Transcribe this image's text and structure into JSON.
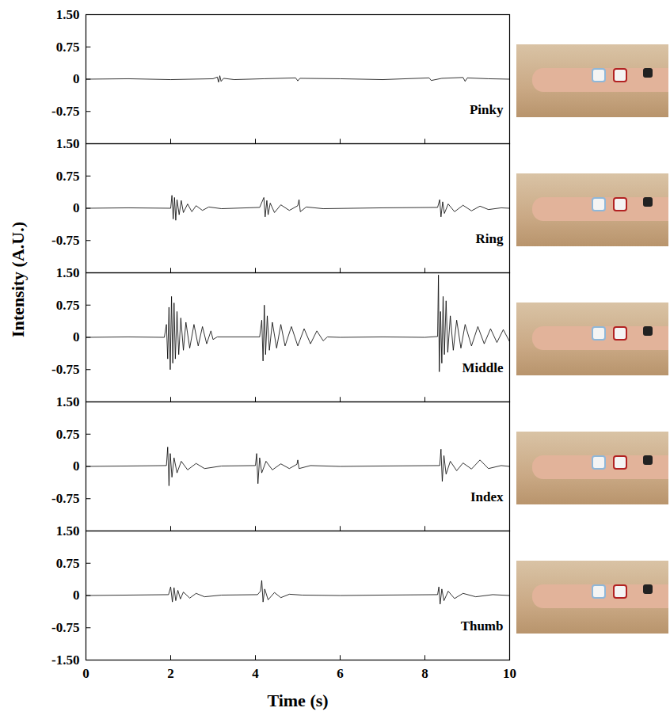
{
  "chart_data": [
    {
      "type": "line",
      "annotation": "Pinky",
      "color": "#000000",
      "tick_labels": "y",
      "xlim": [
        0,
        10
      ],
      "xticks": [
        0,
        2,
        4,
        6,
        8,
        10
      ],
      "ylim": [
        -1.5,
        1.5
      ],
      "yticks": [
        {
          "value": 1.5,
          "label": "1.50"
        },
        0.75,
        0,
        -0.75
      ],
      "x": [
        0,
        1,
        2,
        3.0,
        3.1,
        3.13,
        3.16,
        3.19,
        3.25,
        3.5,
        4.2,
        4.95,
        5.0,
        5.05,
        6,
        7,
        8.1,
        8.15,
        8.4,
        8.9,
        8.95,
        9.0,
        9.5,
        10
      ],
      "values": [
        0,
        0.01,
        -0.01,
        0.01,
        0.05,
        -0.07,
        0.08,
        -0.05,
        0.02,
        -0.01,
        0.01,
        0.03,
        -0.04,
        0.02,
        0.01,
        -0.01,
        0.03,
        -0.03,
        0.02,
        0.04,
        -0.05,
        0.03,
        0.01,
        0
      ]
    },
    {
      "type": "line",
      "annotation": "Ring",
      "color": "#000000",
      "tick_labels": "y",
      "xlim": [
        0,
        10
      ],
      "xticks": [
        0,
        2,
        4,
        6,
        8,
        10
      ],
      "ylim": [
        -1.5,
        1.5
      ],
      "yticks": [
        {
          "value": 1.5,
          "label": "1.50"
        },
        0.75,
        0,
        -0.75
      ],
      "x": [
        0,
        1,
        2.0,
        2.03,
        2.06,
        2.09,
        2.12,
        2.15,
        2.2,
        2.25,
        2.3,
        2.4,
        2.5,
        2.6,
        2.75,
        2.9,
        3.2,
        4.1,
        4.2,
        4.23,
        4.27,
        4.3,
        4.35,
        4.45,
        4.6,
        4.8,
        5.0,
        5.03,
        5.06,
        5.2,
        5.6,
        7,
        8.3,
        8.35,
        8.38,
        8.42,
        8.46,
        8.55,
        8.7,
        8.9,
        9.1,
        9.3,
        9.5,
        9.8,
        10
      ],
      "values": [
        0,
        0.01,
        0,
        0.3,
        -0.25,
        0.25,
        -0.28,
        0.2,
        -0.15,
        0.18,
        -0.1,
        0.1,
        -0.08,
        0.06,
        -0.05,
        0.03,
        -0.01,
        0.02,
        0.25,
        -0.2,
        0.18,
        -0.15,
        0.12,
        -0.1,
        0.08,
        -0.05,
        0.06,
        0.2,
        -0.08,
        0.03,
        -0.01,
        0.01,
        0.02,
        0.2,
        -0.2,
        0.15,
        -0.12,
        0.1,
        -0.08,
        0.07,
        -0.06,
        0.05,
        -0.03,
        0.01,
        0
      ]
    },
    {
      "type": "line",
      "annotation": "Middle",
      "ylabel": "Intensity (A.U.)",
      "color": "#000000",
      "tick_labels": "y",
      "xlim": [
        0,
        10
      ],
      "xticks": [
        0,
        2,
        4,
        6,
        8,
        10
      ],
      "ylim": [
        -1.5,
        1.5
      ],
      "yticks": [
        {
          "value": 1.5,
          "label": "1.50"
        },
        0.75,
        0,
        -0.75
      ],
      "x": [
        0,
        1,
        1.85,
        1.9,
        1.93,
        1.96,
        1.99,
        2.02,
        2.05,
        2.08,
        2.11,
        2.15,
        2.19,
        2.24,
        2.3,
        2.36,
        2.45,
        2.55,
        2.65,
        2.75,
        2.85,
        2.95,
        3.0,
        3.1,
        4.1,
        4.15,
        4.18,
        4.21,
        4.24,
        4.28,
        4.33,
        4.4,
        4.5,
        4.6,
        4.7,
        4.85,
        5.0,
        5.15,
        5.3,
        5.45,
        5.6,
        5.7,
        6,
        7,
        8,
        8.3,
        8.32,
        8.34,
        8.37,
        8.4,
        8.43,
        8.46,
        8.5,
        8.54,
        8.6,
        8.67,
        8.75,
        8.85,
        8.95,
        9.1,
        9.25,
        9.4,
        9.55,
        9.7,
        9.85,
        10
      ],
      "values": [
        0,
        0.01,
        0,
        0.3,
        -0.5,
        0.7,
        -0.75,
        0.95,
        -0.6,
        0.8,
        -0.5,
        0.6,
        -0.4,
        0.45,
        -0.3,
        0.35,
        -0.25,
        0.3,
        -0.2,
        0.25,
        -0.15,
        0.15,
        -0.05,
        0.01,
        0.01,
        0.4,
        -0.55,
        0.75,
        -0.4,
        0.5,
        -0.3,
        0.35,
        -0.25,
        0.3,
        -0.2,
        0.25,
        -0.2,
        0.2,
        -0.15,
        0.15,
        -0.08,
        0.01,
        0,
        0.01,
        0,
        0.02,
        1.45,
        -0.8,
        0.6,
        -0.6,
        0.95,
        -0.4,
        0.85,
        -0.35,
        0.5,
        -0.3,
        0.4,
        -0.25,
        0.3,
        -0.2,
        0.25,
        -0.15,
        0.2,
        -0.12,
        0.18,
        -0.1
      ]
    },
    {
      "type": "line",
      "annotation": "Index",
      "color": "#000000",
      "tick_labels": "y",
      "xlim": [
        0,
        10
      ],
      "xticks": [
        0,
        2,
        4,
        6,
        8,
        10
      ],
      "ylim": [
        -1.5,
        1.5
      ],
      "yticks": [
        {
          "value": 1.5,
          "label": "1.50"
        },
        0.75,
        0,
        -0.75
      ],
      "x": [
        0,
        1,
        1.9,
        1.93,
        1.96,
        1.99,
        2.03,
        2.08,
        2.15,
        2.25,
        2.4,
        2.6,
        2.8,
        3.2,
        4.0,
        4.03,
        4.06,
        4.1,
        4.15,
        4.25,
        4.4,
        4.6,
        4.8,
        4.98,
        5.0,
        5.03,
        5.3,
        6,
        7,
        8.35,
        8.38,
        8.41,
        8.45,
        8.5,
        8.6,
        8.75,
        8.9,
        9.1,
        9.3,
        9.5,
        9.8,
        10
      ],
      "values": [
        0,
        0.01,
        0.02,
        0.45,
        -0.45,
        0.3,
        -0.25,
        0.2,
        -0.15,
        0.12,
        -0.08,
        0.07,
        -0.05,
        0.01,
        0.02,
        0.3,
        -0.4,
        0.2,
        -0.15,
        0.12,
        -0.08,
        0.06,
        -0.05,
        0.05,
        0.15,
        -0.05,
        0.02,
        0,
        0.01,
        0.02,
        0.4,
        -0.35,
        0.25,
        -0.18,
        0.12,
        -0.1,
        0.08,
        -0.06,
        0.15,
        -0.05,
        0.02,
        0
      ]
    },
    {
      "type": "line",
      "annotation": "Thumb",
      "xlabel": "Time (s)",
      "color": "#000000",
      "xlim": [
        0,
        10
      ],
      "xticks": [
        0,
        2,
        4,
        6,
        8,
        10
      ],
      "ylim": [
        -1.5,
        1.5
      ],
      "yticks": [
        {
          "value": 1.5,
          "label": "1.50"
        },
        0.75,
        0,
        -0.75,
        {
          "value": -1.5,
          "label": "-1.50"
        }
      ],
      "x": [
        0,
        1,
        1.95,
        2.0,
        2.04,
        2.08,
        2.12,
        2.17,
        2.23,
        2.3,
        2.45,
        2.6,
        2.8,
        3.2,
        4.05,
        4.12,
        4.15,
        4.18,
        4.22,
        4.3,
        4.45,
        4.6,
        4.8,
        5.1,
        6,
        7,
        8.3,
        8.33,
        8.36,
        8.4,
        8.45,
        8.55,
        8.7,
        8.9,
        9.2,
        9.6,
        10
      ],
      "values": [
        0,
        0.01,
        0.02,
        0.2,
        -0.15,
        0.18,
        -0.12,
        0.12,
        -0.08,
        0.08,
        -0.06,
        0.05,
        -0.03,
        0.01,
        0.02,
        0.1,
        0.35,
        -0.15,
        0.15,
        -0.1,
        0.07,
        -0.05,
        0.03,
        0.01,
        0,
        0.01,
        0.02,
        0.2,
        -0.2,
        0.15,
        -0.12,
        0.1,
        -0.07,
        0.05,
        -0.03,
        0.02,
        0
      ]
    }
  ]
}
